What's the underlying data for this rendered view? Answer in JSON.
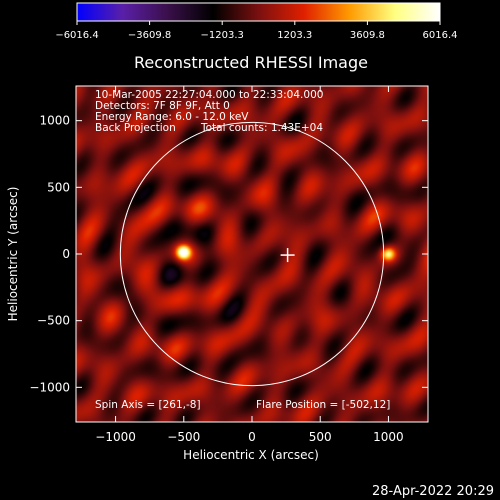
{
  "colorbar": {
    "ticks": [
      -6016.4,
      -3609.8,
      -1203.3,
      1203.3,
      3609.8,
      6016.4
    ],
    "tick_labels": [
      "−6016.4",
      "−3609.8",
      "−1203.3",
      "1203.3",
      "3609.8",
      "6016.4"
    ],
    "colors": [
      "#0000ff",
      "#5a1fa8",
      "#3a0f4a",
      "#000000",
      "#7a1010",
      "#e02000",
      "#ff9a00",
      "#ffff80",
      "#ffffff"
    ]
  },
  "chart_data": {
    "type": "heatmap",
    "title": "Reconstructed RHESSI Image",
    "xlabel": "Heliocentric X (arcsec)",
    "ylabel": "Heliocentric Y (arcsec)",
    "xlim": [
      -1290,
      1290
    ],
    "ylim": [
      -1260,
      1260
    ],
    "xticks": [
      -1000,
      -500,
      0,
      500,
      1000
    ],
    "yticks": [
      -1000,
      -500,
      0,
      500,
      1000
    ],
    "xtick_labels": [
      "−1000",
      "−500",
      "0",
      "500",
      "1000"
    ],
    "ytick_labels": [
      "−1000",
      "−500",
      "0",
      "500",
      "1000"
    ],
    "solar_limb": {
      "center": [
        0,
        0
      ],
      "radius_arcsec": 965
    },
    "sources": [
      {
        "x": -502,
        "y": 12,
        "intensity": 6016.4
      },
      {
        "x": 1000,
        "y": 0,
        "intensity": 3800
      }
    ],
    "spin_axis_marker": {
      "x": 261,
      "y": -8
    },
    "value_range": [
      -6016.4,
      6016.4
    ],
    "annotations": {
      "line1": "10-Mar-2005 22:27:04.000 to 22:33:04.000",
      "line2": "Detectors: 7F 8F 9F, Att 0",
      "line3": "Energy Range: 6.0 - 12.0 keV",
      "line4_left": "Back Projection",
      "line4_right": "Total counts: 1.43E+04",
      "spin_axis": "Spin Axis = [261,-8]",
      "flare_position": "Flare Position = [-502,12]"
    }
  },
  "footer": {
    "date": "28-Apr-2022 20:29"
  }
}
